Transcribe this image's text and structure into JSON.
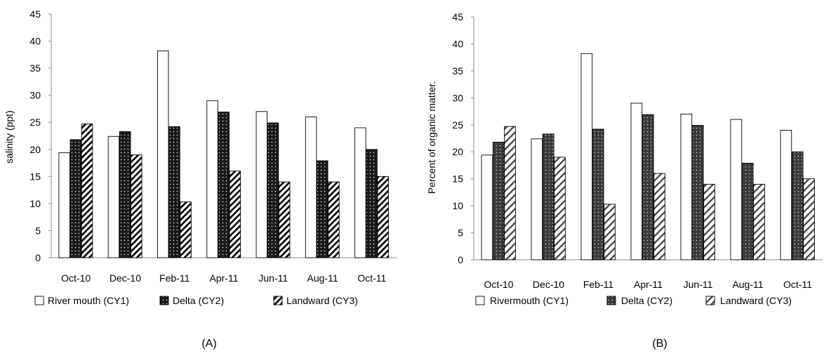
{
  "chart_data": [
    {
      "type": "bar",
      "panel_label": "(A)",
      "ylabel": "salinity (ppt)",
      "ylim": [
        0,
        45
      ],
      "yticks": [
        "0",
        "5",
        "10",
        "15",
        "20",
        "25",
        "30",
        "35",
        "40",
        "45"
      ],
      "categories": [
        "Oct-10",
        "Dec-10",
        "Feb-11",
        "Apr-11",
        "Jun-11",
        "Aug-11",
        "Oct-11"
      ],
      "series": [
        {
          "name": "River mouth (CY1)",
          "pattern": "hollow",
          "values": [
            19.4,
            22.4,
            38.2,
            29,
            27,
            26,
            24
          ]
        },
        {
          "name": "Delta (CY2)",
          "pattern": "dots",
          "values": [
            21.8,
            23.3,
            24.2,
            26.9,
            24.9,
            17.9,
            20
          ]
        },
        {
          "name": "Landward (CY3)",
          "pattern": "hatch",
          "values": [
            24.7,
            19,
            10.3,
            16,
            14,
            14,
            15
          ]
        }
      ],
      "legend_position": "bottom"
    },
    {
      "type": "bar",
      "panel_label": "(B)",
      "ylabel": "Percent of organic matter.",
      "ylim": [
        0,
        45
      ],
      "yticks": [
        "0",
        "5",
        "10",
        "15",
        "20",
        "25",
        "30",
        "35",
        "40",
        "45"
      ],
      "categories": [
        "Oct-10",
        "Dec-10",
        "Feb-11",
        "Apr-11",
        "Jun-11",
        "Aug-11",
        "Oct-11"
      ],
      "series": [
        {
          "name": "Rivermouth (CY1)",
          "pattern": "hollow",
          "values": [
            19.4,
            22.4,
            38.2,
            29,
            27,
            26,
            24
          ]
        },
        {
          "name": "Delta (CY2)",
          "pattern": "dots",
          "values": [
            21.8,
            23.3,
            24.2,
            26.9,
            24.9,
            17.9,
            20
          ]
        },
        {
          "name": "Landward (CY3)",
          "pattern": "hatch",
          "values": [
            24.7,
            19,
            10.3,
            16,
            14,
            14,
            15
          ]
        }
      ],
      "legend_position": "bottom"
    }
  ]
}
